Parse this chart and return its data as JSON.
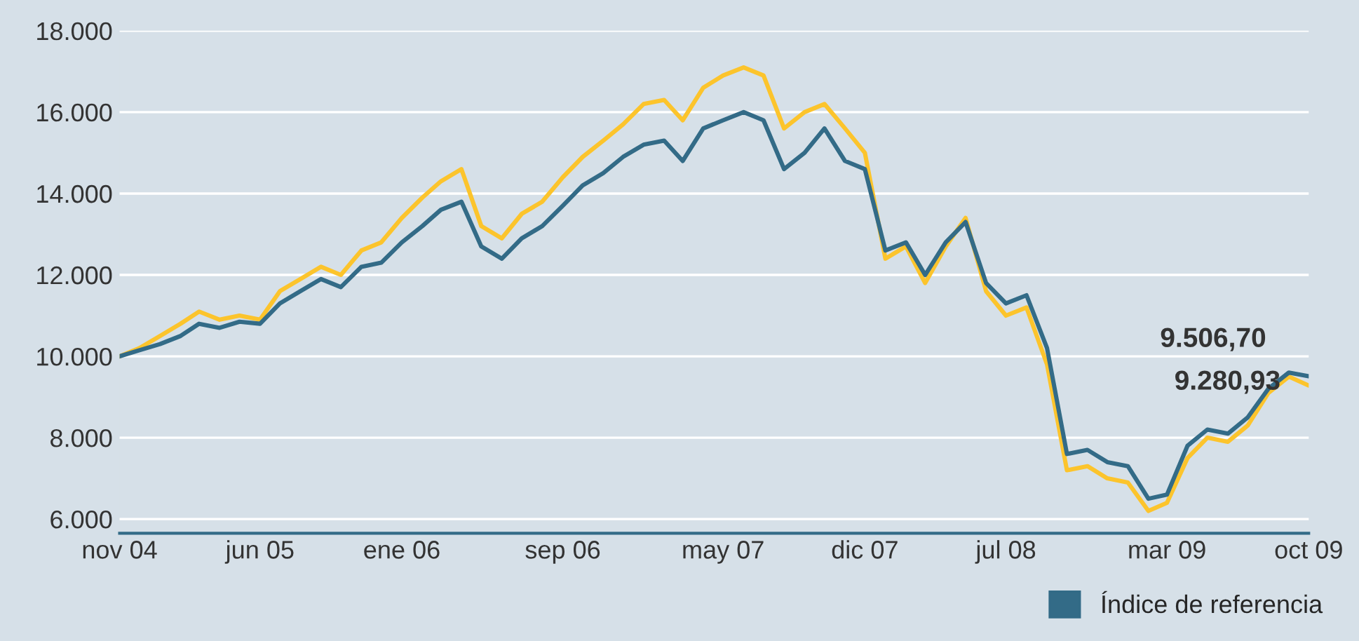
{
  "chart_data": {
    "type": "line",
    "x": [
      "2004-11",
      "2004-12",
      "2005-01",
      "2005-02",
      "2005-03",
      "2005-04",
      "2005-05",
      "2005-06",
      "2005-07",
      "2005-08",
      "2005-09",
      "2005-10",
      "2005-11",
      "2005-12",
      "2006-01",
      "2006-02",
      "2006-03",
      "2006-04",
      "2006-05",
      "2006-06",
      "2006-07",
      "2006-08",
      "2006-09",
      "2006-10",
      "2006-11",
      "2006-12",
      "2007-01",
      "2007-02",
      "2007-03",
      "2007-04",
      "2007-05",
      "2007-06",
      "2007-07",
      "2007-08",
      "2007-09",
      "2007-10",
      "2007-11",
      "2007-12",
      "2008-01",
      "2008-02",
      "2008-03",
      "2008-04",
      "2008-05",
      "2008-06",
      "2008-07",
      "2008-08",
      "2008-09",
      "2008-10",
      "2008-11",
      "2008-12",
      "2009-01",
      "2009-02",
      "2009-03",
      "2009-04",
      "2009-05",
      "2009-06",
      "2009-07",
      "2009-08",
      "2009-09",
      "2009-10"
    ],
    "series": [
      {
        "color": "#fcc42c",
        "values": [
          10000,
          10200,
          10500,
          10800,
          11100,
          10900,
          11000,
          10900,
          11600,
          11900,
          12200,
          12000,
          12600,
          12800,
          13400,
          13900,
          14300,
          14600,
          13200,
          12900,
          13500,
          13800,
          14400,
          14900,
          15300,
          15700,
          16200,
          16300,
          15800,
          16600,
          16900,
          17100,
          16900,
          15600,
          16000,
          16200,
          15600,
          15000,
          12400,
          12700,
          11800,
          12700,
          13400,
          11600,
          11000,
          11200,
          9800,
          7200,
          7300,
          7000,
          6900,
          6200,
          6400,
          7500,
          8000,
          7900,
          8300,
          9100,
          9500,
          9280
        ]
      },
      {
        "name": "Índice de referencia",
        "color": "#336b87",
        "values": [
          10000,
          10150,
          10300,
          10500,
          10800,
          10700,
          10850,
          10800,
          11300,
          11600,
          11900,
          11700,
          12200,
          12300,
          12800,
          13200,
          13600,
          13800,
          12700,
          12400,
          12900,
          13200,
          13700,
          14200,
          14500,
          14900,
          15200,
          15300,
          14800,
          15600,
          15800,
          16000,
          15800,
          14600,
          15000,
          15600,
          14800,
          14600,
          12600,
          12800,
          12000,
          12800,
          13300,
          11800,
          11300,
          11500,
          10200,
          7600,
          7700,
          7400,
          7300,
          6500,
          6600,
          7800,
          8200,
          8100,
          8500,
          9200,
          9600,
          9510
        ]
      }
    ],
    "annotations": [
      "9.506,70",
      "9.280,93"
    ],
    "xlim": [
      "2004-11",
      "2009-10"
    ],
    "xticks": [
      {
        "value": "2004-11",
        "label": "nov 04"
      },
      {
        "value": "2005-06",
        "label": "jun 05"
      },
      {
        "value": "2006-01",
        "label": "ene 06"
      },
      {
        "value": "2006-09",
        "label": "sep 06"
      },
      {
        "value": "2007-05",
        "label": "may 07"
      },
      {
        "value": "2007-12",
        "label": "dic 07"
      },
      {
        "value": "2008-07",
        "label": "jul 08"
      },
      {
        "value": "2009-03",
        "label": "mar 09"
      },
      {
        "value": "2009-10",
        "label": "oct 09"
      }
    ],
    "ylim": [
      5650,
      18000
    ],
    "yticks": [
      {
        "value": 6000,
        "label": "6.000"
      },
      {
        "value": 8000,
        "label": "8.000"
      },
      {
        "value": 10000,
        "label": "10.000"
      },
      {
        "value": 12000,
        "label": "12.000"
      },
      {
        "value": 14000,
        "label": "14.000"
      },
      {
        "value": 16000,
        "label": "16.000"
      },
      {
        "value": 18000,
        "label": "18.000"
      }
    ],
    "grid": "y",
    "legend": "bottom right"
  }
}
